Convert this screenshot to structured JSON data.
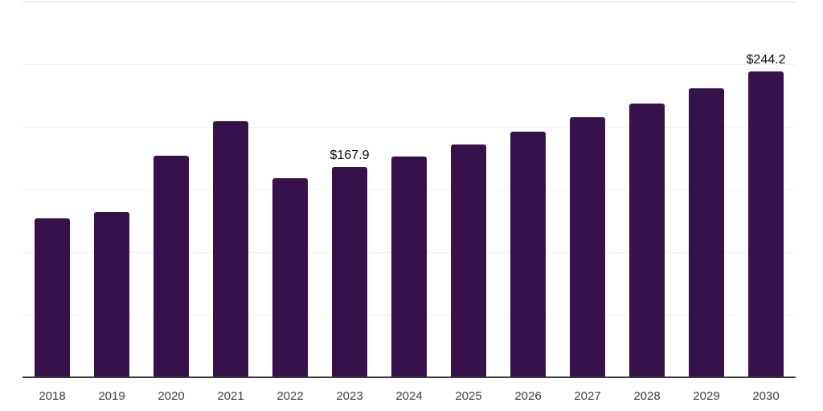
{
  "chart_data": {
    "type": "bar",
    "title": "",
    "xlabel": "",
    "ylabel": "",
    "categories": [
      "2018",
      "2019",
      "2020",
      "2021",
      "2022",
      "2023",
      "2024",
      "2025",
      "2026",
      "2027",
      "2028",
      "2029",
      "2030"
    ],
    "values": [
      127.0,
      132.1,
      176.8,
      204.3,
      159.0,
      167.9,
      176.2,
      185.8,
      196.0,
      207.5,
      218.3,
      230.5,
      244.2
    ],
    "value_prefix": "$",
    "data_labels": [
      {
        "category": "2023",
        "text": "$167.9"
      },
      {
        "category": "2030",
        "text": "$244.2"
      }
    ],
    "ylim": [
      0,
      300
    ],
    "gridline_interval": 50,
    "grid": "horizontal",
    "legend": "none",
    "colors": {
      "bar": "#36114b",
      "background": "#ffffff",
      "gridline": "#f2f2f2",
      "top_gridline": "#dddddd",
      "axis_line": "#3a3a3a",
      "tick_label": "#3f3f3f",
      "value_label": "#0b0b0b"
    }
  }
}
